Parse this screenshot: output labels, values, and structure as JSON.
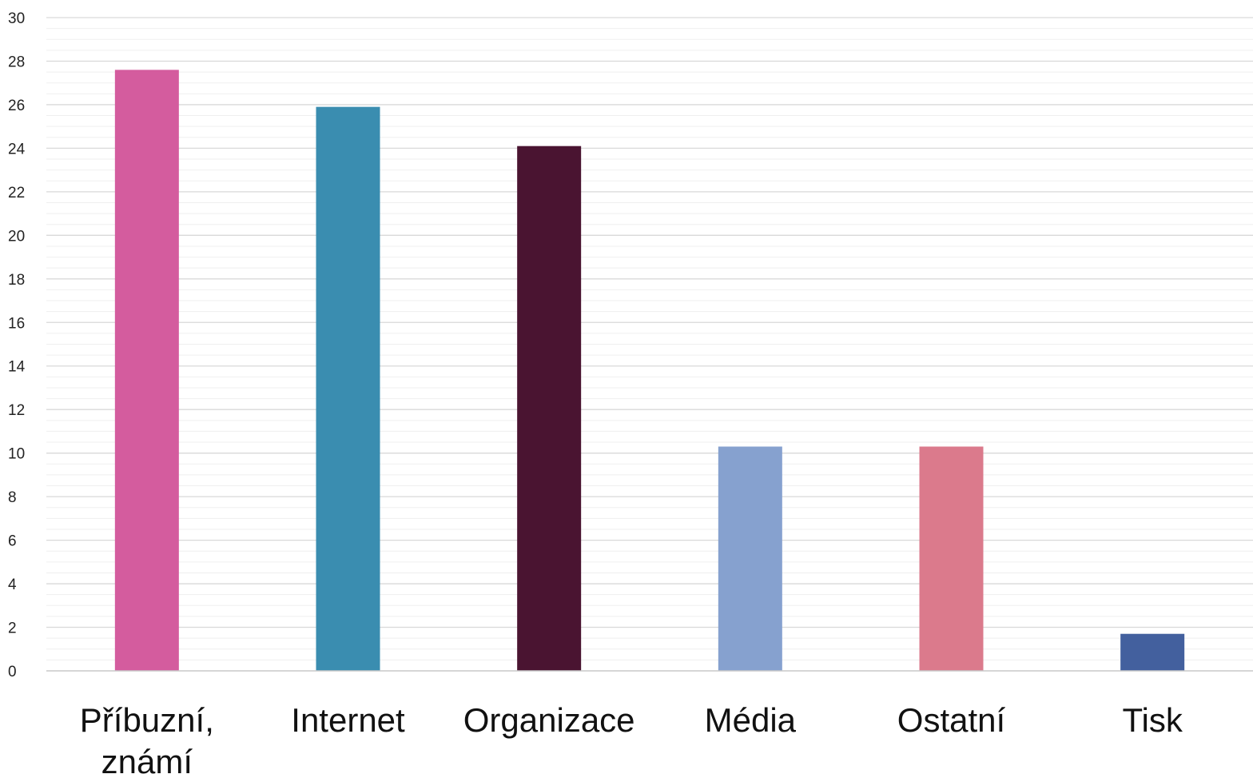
{
  "chart_data": {
    "type": "bar",
    "categories": [
      [
        "Příbuzní,",
        "známí"
      ],
      [
        "Internet"
      ],
      [
        "Organizace"
      ],
      [
        "Média"
      ],
      [
        "Ostatní"
      ],
      [
        "Tisk"
      ]
    ],
    "values": [
      27.6,
      25.9,
      24.1,
      10.3,
      10.3,
      1.7
    ],
    "colors": [
      "#d45c9e",
      "#3a8db0",
      "#4a1431",
      "#86a1cf",
      "#db7a8c",
      "#43609e"
    ],
    "ylim": [
      0,
      30
    ],
    "ytick_step": 2,
    "minor_grid_step": 0.5,
    "grid": true,
    "title": "",
    "xlabel": "",
    "ylabel": ""
  }
}
